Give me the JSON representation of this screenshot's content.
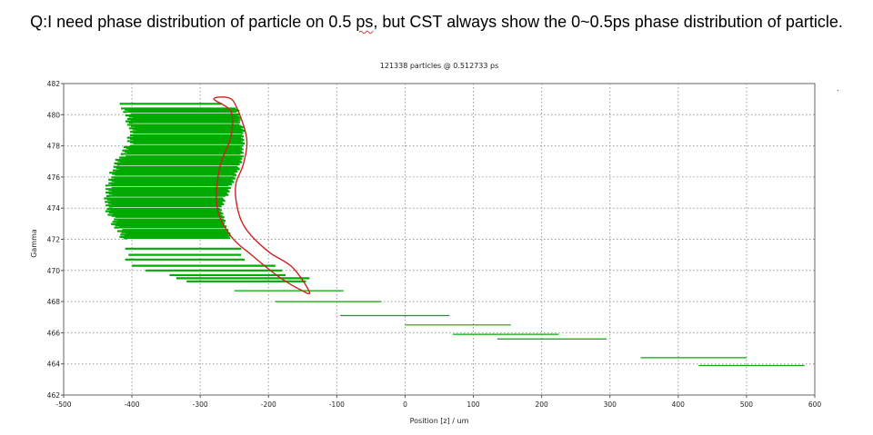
{
  "question": {
    "prefix": "Q:I need phase distribution of particle on 0.5 ",
    "ps_word": "ps",
    "suffix": ", but CST always show the 0~0.5ps phase distribution of particle."
  },
  "chart_data": {
    "type": "scatter",
    "title": "121338 particles @ 0.512733 ps",
    "xlabel": "Position [z] / um",
    "ylabel": "Gamma",
    "xlim": [
      -500,
      600
    ],
    "ylim": [
      462,
      482
    ],
    "xticks": [
      -500,
      -400,
      -300,
      -200,
      -100,
      0,
      100,
      200,
      300,
      400,
      500,
      600
    ],
    "yticks": [
      462,
      464,
      466,
      468,
      470,
      472,
      474,
      476,
      478,
      480,
      482
    ],
    "grid": true,
    "grid_style": "dotted",
    "colors": {
      "particles": "#00aa00",
      "annotation": "#cc2222",
      "grid": "#9a9a9a"
    },
    "dense_bunch_envelope": [
      [
        480.4,
        -410,
        -245
      ],
      [
        479.8,
        -405,
        -243
      ],
      [
        479.0,
        -400,
        -238
      ],
      [
        478.0,
        -405,
        -238
      ],
      [
        477.0,
        -420,
        -240
      ],
      [
        476.0,
        -430,
        -250
      ],
      [
        475.0,
        -435,
        -260
      ],
      [
        474.0,
        -435,
        -270
      ],
      [
        473.0,
        -425,
        -265
      ],
      [
        472.0,
        -410,
        -255
      ]
    ],
    "tail_segments": [
      {
        "gamma": 480.7,
        "z0": -418,
        "z1": -268
      },
      {
        "gamma": 471.4,
        "z0": -410,
        "z1": -240
      },
      {
        "gamma": 471.0,
        "z0": -405,
        "z1": -240
      },
      {
        "gamma": 470.7,
        "z0": -410,
        "z1": -235
      },
      {
        "gamma": 470.3,
        "z0": -400,
        "z1": -190
      },
      {
        "gamma": 470.0,
        "z0": -380,
        "z1": -180
      },
      {
        "gamma": 469.7,
        "z0": -345,
        "z1": -175
      },
      {
        "gamma": 469.5,
        "z0": -335,
        "z1": -140
      },
      {
        "gamma": 469.3,
        "z0": -320,
        "z1": -145
      },
      {
        "gamma": 468.7,
        "z0": -250,
        "z1": -90
      },
      {
        "gamma": 468.0,
        "z0": -190,
        "z1": -35
      },
      {
        "gamma": 467.1,
        "z0": -95,
        "z1": 65
      },
      {
        "gamma": 466.5,
        "z0": 0,
        "z1": 155
      },
      {
        "gamma": 465.9,
        "z0": 70,
        "z1": 225
      },
      {
        "gamma": 465.6,
        "z0": 135,
        "z1": 295
      },
      {
        "gamma": 464.4,
        "z0": 345,
        "z1": 500
      },
      {
        "gamma": 463.9,
        "z0": 430,
        "z1": 585
      }
    ],
    "annotation_loop": [
      [
        -280,
        481.0
      ],
      [
        -260,
        481.1
      ],
      [
        -248,
        480.6
      ],
      [
        -232,
        478.5
      ],
      [
        -237,
        476.8
      ],
      [
        -248,
        475.5
      ],
      [
        -245,
        473.9
      ],
      [
        -232,
        472.6
      ],
      [
        -200,
        471.2
      ],
      [
        -165,
        470.2
      ],
      [
        -140,
        468.6
      ],
      [
        -155,
        468.8
      ],
      [
        -185,
        469.6
      ],
      [
        -225,
        471.0
      ],
      [
        -255,
        472.2
      ],
      [
        -275,
        474.0
      ],
      [
        -272,
        476.5
      ],
      [
        -255,
        478.6
      ],
      [
        -255,
        480.2
      ],
      [
        -280,
        481.0
      ]
    ]
  }
}
